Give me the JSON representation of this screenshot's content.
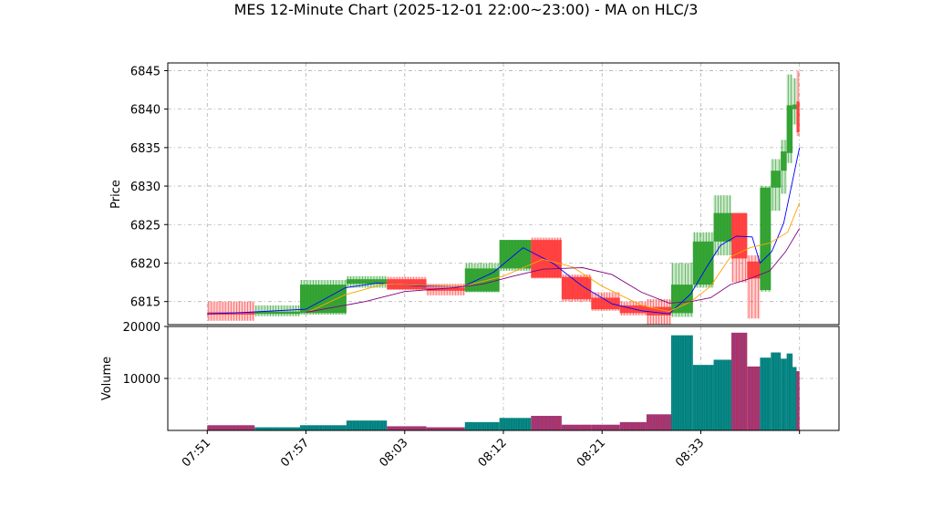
{
  "chart_data": {
    "type": "candlestick",
    "title": "MES 12-Minute Chart (2025-12-01 22:00~23:00) - MA on HLC/3",
    "price_panel": {
      "ylabel": "Price",
      "ylim": [
        6812,
        6846
      ],
      "yticks": [
        6815,
        6820,
        6825,
        6830,
        6835,
        6840,
        6845
      ],
      "grid": true
    },
    "volume_panel": {
      "ylabel": "Volume",
      "ylim": [
        0,
        20000
      ],
      "yticks": [
        10000,
        20000
      ],
      "grid": true
    },
    "xlim": [
      -2.0,
      32.0
    ],
    "x_ticks": [
      {
        "x": 0,
        "label": "07:51"
      },
      {
        "x": 5,
        "label": "07:57"
      },
      {
        "x": 10,
        "label": "08:03"
      },
      {
        "x": 15,
        "label": "08:12"
      },
      {
        "x": 20,
        "label": "08:21"
      },
      {
        "x": 25,
        "label": "08:33"
      },
      {
        "x": 30,
        "label": ""
      }
    ],
    "candles": [
      {
        "x": 0.0,
        "w": 2.4,
        "open": 6813.6,
        "high": 6815.0,
        "low": 6812.5,
        "close": 6813.3,
        "volume": 1000
      },
      {
        "x": 2.4,
        "w": 2.3,
        "open": 6813.4,
        "high": 6814.5,
        "low": 6813.1,
        "close": 6813.7,
        "volume": 600
      },
      {
        "x": 4.7,
        "w": 2.35,
        "open": 6813.5,
        "high": 6817.8,
        "low": 6813.3,
        "close": 6817.2,
        "volume": 1000
      },
      {
        "x": 7.05,
        "w": 2.05,
        "open": 6817.3,
        "high": 6818.3,
        "low": 6816.8,
        "close": 6817.9,
        "volume": 1900
      },
      {
        "x": 9.1,
        "w": 2.0,
        "open": 6817.9,
        "high": 6818.2,
        "low": 6816.5,
        "close": 6816.6,
        "volume": 800
      },
      {
        "x": 11.1,
        "w": 1.95,
        "open": 6816.8,
        "high": 6817.3,
        "low": 6815.8,
        "close": 6816.4,
        "volume": 600
      },
      {
        "x": 13.05,
        "w": 1.75,
        "open": 6816.3,
        "high": 6820.0,
        "low": 6816.2,
        "close": 6819.3,
        "volume": 1600
      },
      {
        "x": 14.8,
        "w": 1.6,
        "open": 6819.3,
        "high": 6823.0,
        "low": 6819.0,
        "close": 6823.0,
        "volume": 2400
      },
      {
        "x": 16.4,
        "w": 1.55,
        "open": 6823.0,
        "high": 6823.3,
        "low": 6818.0,
        "close": 6818.1,
        "volume": 2800
      },
      {
        "x": 17.95,
        "w": 1.5,
        "open": 6818.2,
        "high": 6818.5,
        "low": 6815.0,
        "close": 6815.3,
        "volume": 1100
      },
      {
        "x": 19.45,
        "w": 1.45,
        "open": 6815.5,
        "high": 6816.2,
        "low": 6813.8,
        "close": 6814.0,
        "volume": 1100
      },
      {
        "x": 20.9,
        "w": 1.35,
        "open": 6814.5,
        "high": 6815.0,
        "low": 6813.2,
        "close": 6813.5,
        "volume": 1600
      },
      {
        "x": 22.25,
        "w": 1.25,
        "open": 6814.3,
        "high": 6815.3,
        "low": 6812.0,
        "close": 6813.2,
        "volume": 3100
      },
      {
        "x": 23.5,
        "w": 1.1,
        "open": 6813.5,
        "high": 6820.0,
        "low": 6813.0,
        "close": 6817.2,
        "volume": 18300
      },
      {
        "x": 24.6,
        "w": 1.05,
        "open": 6817.2,
        "high": 6824.0,
        "low": 6816.8,
        "close": 6822.8,
        "volume": 12600
      },
      {
        "x": 25.65,
        "w": 0.9,
        "open": 6822.8,
        "high": 6828.8,
        "low": 6821.0,
        "close": 6826.5,
        "volume": 13600
      },
      {
        "x": 26.55,
        "w": 0.8,
        "open": 6826.5,
        "high": 6826.5,
        "low": 6817.5,
        "close": 6820.6,
        "volume": 18800
      },
      {
        "x": 27.35,
        "w": 0.65,
        "open": 6820.2,
        "high": 6821.0,
        "low": 6812.8,
        "close": 6818.0,
        "volume": 12300
      },
      {
        "x": 28.0,
        "w": 0.55,
        "open": 6816.5,
        "high": 6830.0,
        "low": 6816.3,
        "close": 6829.8,
        "volume": 14000
      },
      {
        "x": 28.55,
        "w": 0.5,
        "open": 6829.8,
        "high": 6833.5,
        "low": 6826.8,
        "close": 6832.0,
        "volume": 15000
      },
      {
        "x": 29.05,
        "w": 0.3,
        "open": 6832.0,
        "high": 6836.0,
        "low": 6829.0,
        "close": 6834.5,
        "volume": 13800
      },
      {
        "x": 29.35,
        "w": 0.3,
        "open": 6834.3,
        "high": 6844.5,
        "low": 6833.0,
        "close": 6840.5,
        "volume": 14800
      },
      {
        "x": 29.65,
        "w": 0.2,
        "open": 6840.0,
        "high": 6844.0,
        "low": 6838.0,
        "close": 6840.6,
        "volume": 12200
      },
      {
        "x": 29.85,
        "w": 0.15,
        "open": 6841.0,
        "high": 6845.0,
        "low": 6836.5,
        "close": 6837.0,
        "volume": 11400
      }
    ],
    "ma_series": [
      {
        "color": "#0000ff",
        "points": [
          [
            0,
            6813.4
          ],
          [
            2,
            6813.6
          ],
          [
            5,
            6814.0
          ],
          [
            7,
            6816.8
          ],
          [
            8.6,
            6817.4
          ],
          [
            11,
            6817.0
          ],
          [
            13,
            6817.0
          ],
          [
            14.5,
            6818.8
          ],
          [
            16,
            6822.0
          ],
          [
            17.5,
            6820.0
          ],
          [
            19,
            6817.0
          ],
          [
            20.5,
            6814.7
          ],
          [
            22,
            6813.8
          ],
          [
            23.4,
            6813.4
          ],
          [
            24.5,
            6816.0
          ],
          [
            25.3,
            6819.5
          ],
          [
            26,
            6822.3
          ],
          [
            26.8,
            6823.5
          ],
          [
            27.6,
            6823.4
          ],
          [
            28,
            6820.0
          ],
          [
            28.6,
            6821.5
          ],
          [
            29.2,
            6825.2
          ],
          [
            30,
            6835.0
          ]
        ]
      },
      {
        "color": "#ffa500",
        "points": [
          [
            5,
            6813.5
          ],
          [
            7,
            6815.9
          ],
          [
            9,
            6817.3
          ],
          [
            11,
            6817.1
          ],
          [
            13,
            6817.0
          ],
          [
            15,
            6818.3
          ],
          [
            17,
            6820.5
          ],
          [
            18.5,
            6819.5
          ],
          [
            20,
            6817.0
          ],
          [
            22,
            6814.5
          ],
          [
            23.4,
            6813.7
          ],
          [
            24.5,
            6815.0
          ],
          [
            25.5,
            6817.0
          ],
          [
            26.5,
            6820.8
          ],
          [
            27.5,
            6822.0
          ],
          [
            28.5,
            6822.6
          ],
          [
            29.4,
            6824.0
          ],
          [
            30,
            6827.8
          ]
        ]
      },
      {
        "color": "#800080",
        "points": [
          [
            5,
            6813.6
          ],
          [
            8,
            6815.0
          ],
          [
            10,
            6816.3
          ],
          [
            12.5,
            6816.8
          ],
          [
            14,
            6817.3
          ],
          [
            15.5,
            6818.3
          ],
          [
            17,
            6819.2
          ],
          [
            19,
            6819.4
          ],
          [
            20.5,
            6818.5
          ],
          [
            22,
            6816.2
          ],
          [
            23.4,
            6814.8
          ],
          [
            24.5,
            6815.0
          ],
          [
            25.5,
            6815.5
          ],
          [
            26.5,
            6817.2
          ],
          [
            27.5,
            6818.0
          ],
          [
            28.5,
            6819.0
          ],
          [
            29.3,
            6821.5
          ],
          [
            30,
            6824.5
          ]
        ]
      }
    ],
    "colors": {
      "up": "#2ca02c",
      "down": "#ff3b3b",
      "volume_up": "#008080",
      "volume_down": "#b03060",
      "grid": "#b0b0b0"
    }
  }
}
